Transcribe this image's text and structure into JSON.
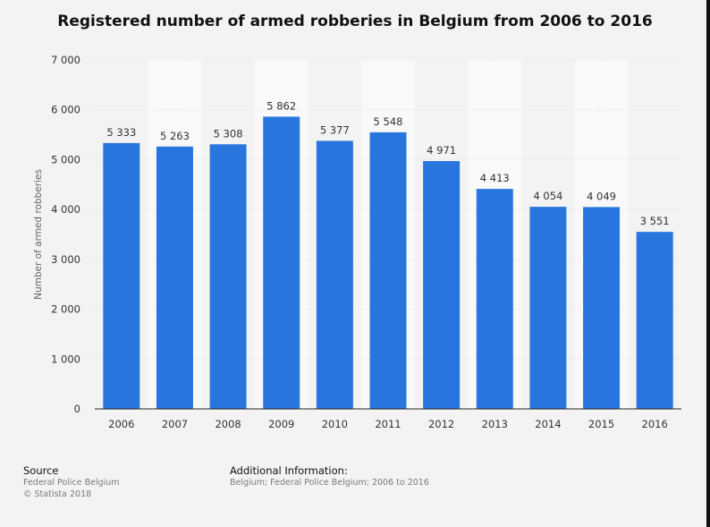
{
  "chart_data": {
    "type": "bar",
    "title": "Registered number of armed robberies in Belgium from 2006 to 2016",
    "xlabel": "",
    "ylabel": "Number of armed robberies",
    "categories": [
      "2006",
      "2007",
      "2008",
      "2009",
      "2010",
      "2011",
      "2012",
      "2013",
      "2014",
      "2015",
      "2016"
    ],
    "values": [
      5333,
      5263,
      5308,
      5862,
      5377,
      5548,
      4971,
      4413,
      4054,
      4049,
      3551
    ],
    "value_labels": [
      "5 333",
      "5 263",
      "5 308",
      "5 862",
      "5 377",
      "5 548",
      "4 971",
      "4 413",
      "4 054",
      "4 049",
      "3 551"
    ],
    "ylim": [
      0,
      7000
    ],
    "yticks": [
      0,
      1000,
      2000,
      3000,
      4000,
      5000,
      6000,
      7000
    ],
    "ytick_labels": [
      "0",
      "1 000",
      "2 000",
      "3 000",
      "4 000",
      "5 000",
      "6 000",
      "7 000"
    ],
    "grid": true,
    "bar_color": "#2876dd"
  },
  "footer": {
    "source_heading": "Source",
    "source_lines": [
      "Federal Police Belgium",
      "© Statista 2018"
    ],
    "info_heading": "Additional Information:",
    "info_text": "Belgium; Federal Police Belgium; 2006 to 2016"
  }
}
